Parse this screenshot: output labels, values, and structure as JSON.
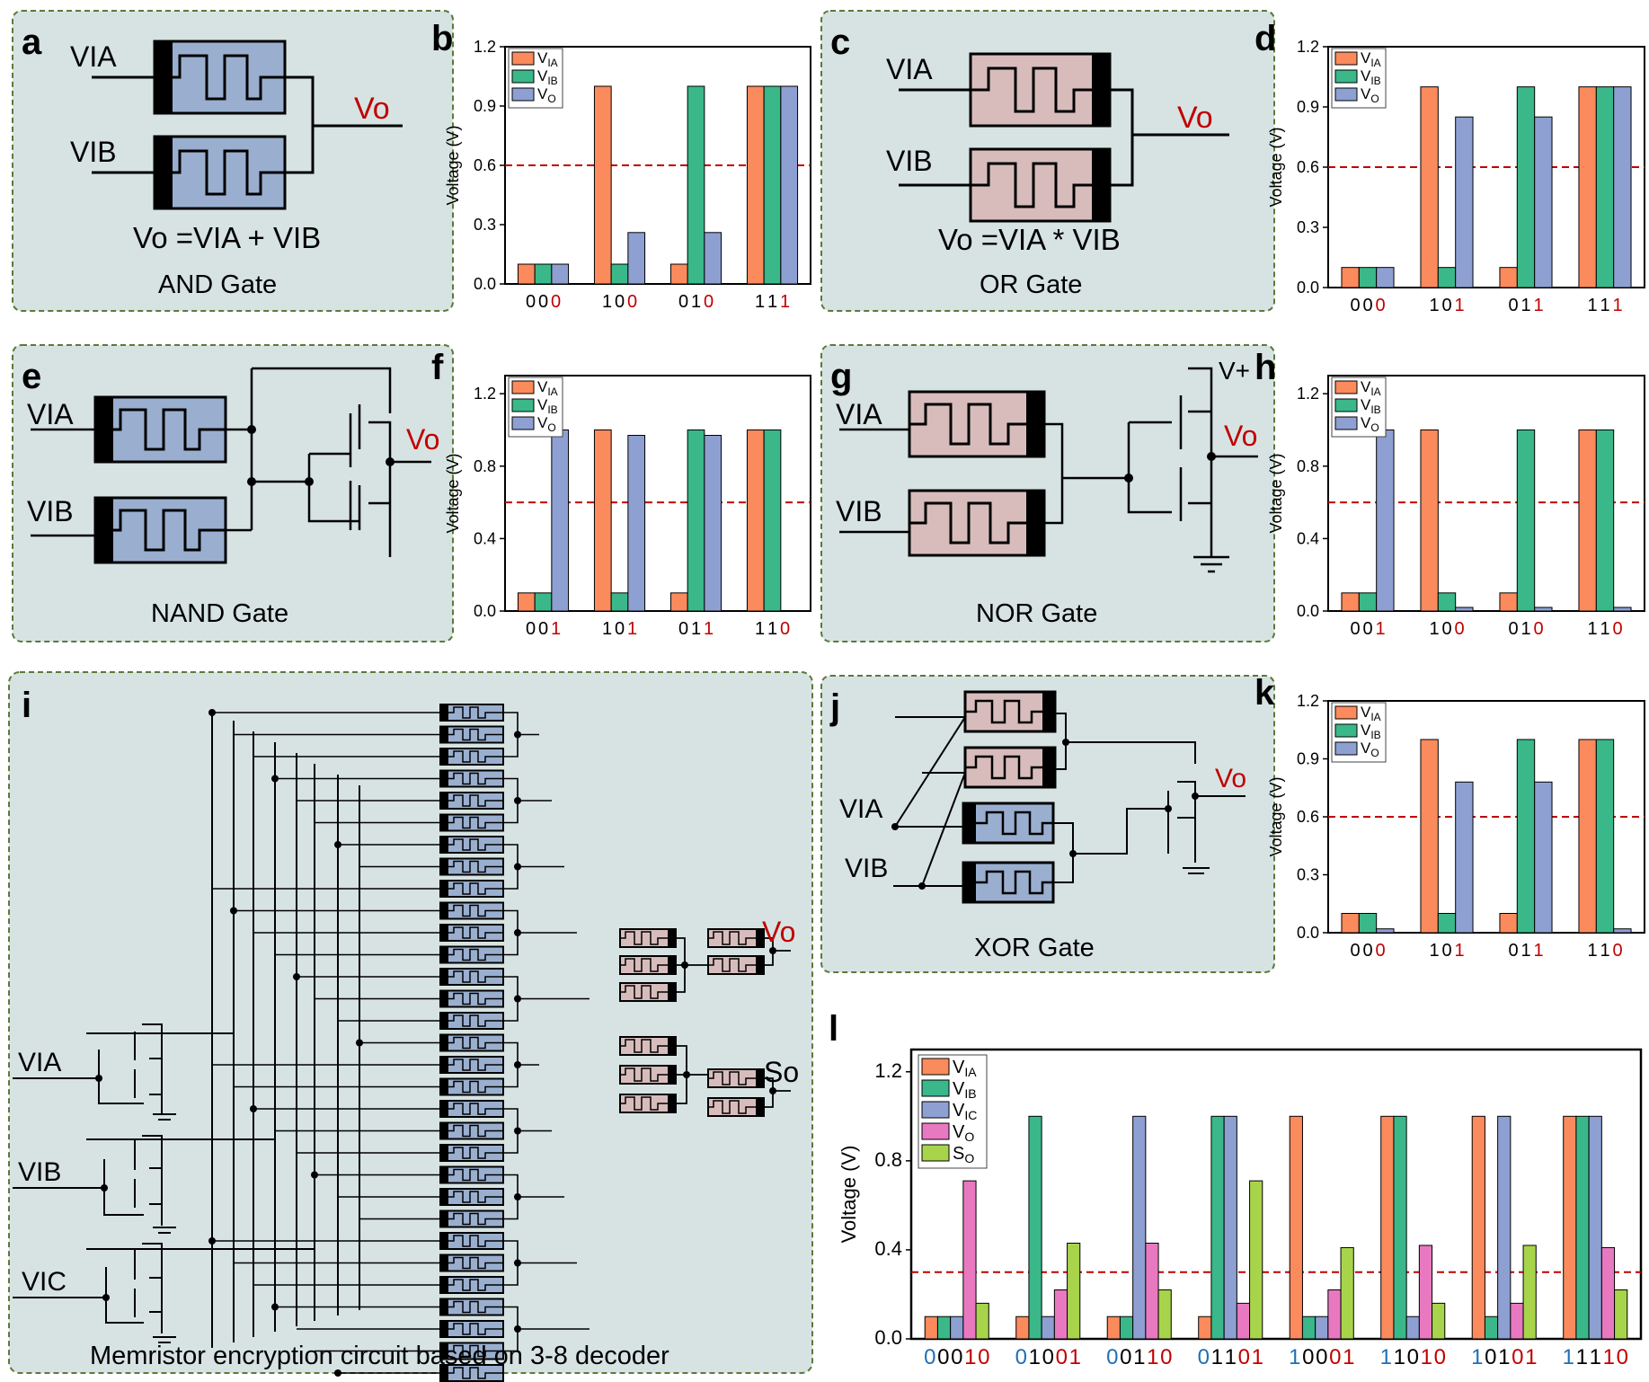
{
  "colors": {
    "panel_bg": "#d7e3e3",
    "panel_border": "#5a7a3a",
    "device_blue": "#9aafcf",
    "device_pink": "#d8bcbc",
    "bar_via": "#fb8a5c",
    "bar_vib": "#3ab889",
    "bar_vic": "#8ea0d2",
    "bar_vo_small": "#8ea0d2",
    "bar_vo_l": "#e879c0",
    "bar_so": "#a8d44c",
    "threshold": "#c00000",
    "label_red": "#c00000",
    "label_blue": "#1f6fb5"
  },
  "panels": {
    "a": {
      "letter": "a",
      "in_a": "VIA",
      "in_b": "VIB",
      "out": "Vo",
      "equation": "Vo =VIA + VIB",
      "name": "AND Gate"
    },
    "c": {
      "letter": "c",
      "in_a": "VIA",
      "in_b": "VIB",
      "out": "Vo",
      "equation": "Vo =VIA * VIB",
      "name": "OR Gate"
    },
    "e": {
      "letter": "e",
      "in_a": "VIA",
      "in_b": "VIB",
      "out": "Vo",
      "name": "NAND Gate"
    },
    "g": {
      "letter": "g",
      "in_a": "VIA",
      "in_b": "VIB",
      "out": "Vo",
      "supply": "V+",
      "name": "NOR Gate"
    },
    "i": {
      "letter": "i",
      "in_a": "VIA",
      "in_b": "VIB",
      "in_c": "VIC",
      "out_v": "Vo",
      "out_s": "So",
      "name": "Memristor encryption circuit based on 3-8 decoder"
    },
    "j": {
      "letter": "j",
      "in_a": "VIA",
      "in_b": "VIB",
      "out": "Vo",
      "name": "XOR Gate"
    }
  },
  "chart_data": [
    {
      "letter": "b",
      "type": "bar",
      "ylabel": "Voltage (V)",
      "ylim": [
        0,
        1.2
      ],
      "yticks": [
        "0.0",
        "0.3",
        "0.6",
        "0.9",
        "1.2"
      ],
      "threshold": 0.6,
      "legend": [
        "VIA",
        "VIB",
        "VO"
      ],
      "categories": [
        [
          "0",
          "0",
          "0"
        ],
        [
          "1",
          "0",
          "0"
        ],
        [
          "0",
          "1",
          "0"
        ],
        [
          "1",
          "1",
          "1"
        ]
      ],
      "series": [
        {
          "name": "VIA",
          "values": [
            0.1,
            1.0,
            0.1,
            1.0
          ]
        },
        {
          "name": "VIB",
          "values": [
            0.1,
            0.1,
            1.0,
            1.0
          ]
        },
        {
          "name": "VO",
          "values": [
            0.1,
            0.26,
            0.26,
            1.0
          ]
        }
      ]
    },
    {
      "letter": "d",
      "type": "bar",
      "ylabel": "Voltage (V)",
      "ylim": [
        0,
        1.2
      ],
      "yticks": [
        "0.0",
        "0.3",
        "0.6",
        "0.9",
        "1.2"
      ],
      "threshold": 0.6,
      "legend": [
        "VIA",
        "VIB",
        "VO"
      ],
      "categories": [
        [
          "0",
          "0",
          "0"
        ],
        [
          "1",
          "0",
          "1"
        ],
        [
          "0",
          "1",
          "1"
        ],
        [
          "1",
          "1",
          "1"
        ]
      ],
      "series": [
        {
          "name": "VIA",
          "values": [
            0.1,
            1.0,
            0.1,
            1.0
          ]
        },
        {
          "name": "VIB",
          "values": [
            0.1,
            0.1,
            1.0,
            1.0
          ]
        },
        {
          "name": "VO",
          "values": [
            0.1,
            0.85,
            0.85,
            1.0
          ]
        }
      ]
    },
    {
      "letter": "f",
      "type": "bar",
      "ylabel": "Voltage (V)",
      "ylim": [
        0,
        1.3
      ],
      "yticks": [
        "0.0",
        "0.4",
        "0.8",
        "1.2"
      ],
      "threshold": 0.6,
      "legend": [
        "VIA",
        "VIB",
        "VO"
      ],
      "categories": [
        [
          "0",
          "0",
          "1"
        ],
        [
          "1",
          "0",
          "1"
        ],
        [
          "0",
          "1",
          "1"
        ],
        [
          "1",
          "1",
          "0"
        ]
      ],
      "series": [
        {
          "name": "VIA",
          "values": [
            0.1,
            1.0,
            0.1,
            1.0
          ]
        },
        {
          "name": "VIB",
          "values": [
            0.1,
            0.1,
            1.0,
            1.0
          ]
        },
        {
          "name": "VO",
          "values": [
            1.0,
            0.97,
            0.97,
            0.0
          ]
        }
      ]
    },
    {
      "letter": "h",
      "type": "bar",
      "ylabel": "Voltage (V)",
      "ylim": [
        0,
        1.3
      ],
      "yticks": [
        "0.0",
        "0.4",
        "0.8",
        "1.2"
      ],
      "threshold": 0.6,
      "legend": [
        "VIA",
        "VIB",
        "VO"
      ],
      "categories": [
        [
          "0",
          "0",
          "1"
        ],
        [
          "1",
          "0",
          "0"
        ],
        [
          "0",
          "1",
          "0"
        ],
        [
          "1",
          "1",
          "0"
        ]
      ],
      "series": [
        {
          "name": "VIA",
          "values": [
            0.1,
            1.0,
            0.1,
            1.0
          ]
        },
        {
          "name": "VIB",
          "values": [
            0.1,
            0.1,
            1.0,
            1.0
          ]
        },
        {
          "name": "VO",
          "values": [
            1.0,
            0.02,
            0.02,
            0.02
          ]
        }
      ]
    },
    {
      "letter": "k",
      "type": "bar",
      "ylabel": "Voltage (V)",
      "ylim": [
        0,
        1.2
      ],
      "yticks": [
        "0.0",
        "0.3",
        "0.6",
        "0.9",
        "1.2"
      ],
      "threshold": 0.6,
      "legend": [
        "VIA",
        "VIB",
        "VO"
      ],
      "categories": [
        [
          "0",
          "0",
          "0"
        ],
        [
          "1",
          "0",
          "1"
        ],
        [
          "0",
          "1",
          "1"
        ],
        [
          "1",
          "1",
          "0"
        ]
      ],
      "series": [
        {
          "name": "VIA",
          "values": [
            0.1,
            1.0,
            0.1,
            1.0
          ]
        },
        {
          "name": "VIB",
          "values": [
            0.1,
            0.1,
            1.0,
            1.0
          ]
        },
        {
          "name": "VO",
          "values": [
            0.02,
            0.78,
            0.78,
            0.02
          ]
        }
      ]
    },
    {
      "letter": "l",
      "type": "bar",
      "ylabel": "Voltage (V)",
      "ylim": [
        0,
        1.3
      ],
      "yticks": [
        "0.0",
        "0.4",
        "0.8",
        "1.2"
      ],
      "threshold": 0.3,
      "legend": [
        "VIA",
        "VIB",
        "VIC",
        "VO",
        "SO"
      ],
      "categories": [
        [
          "0",
          "0",
          "0",
          "1",
          "0"
        ],
        [
          "0",
          "1",
          "0",
          "0",
          "1"
        ],
        [
          "0",
          "0",
          "1",
          "1",
          "0"
        ],
        [
          "0",
          "1",
          "1",
          "0",
          "1"
        ],
        [
          "1",
          "0",
          "0",
          "0",
          "1"
        ],
        [
          "1",
          "1",
          "0",
          "1",
          "0"
        ],
        [
          "1",
          "0",
          "1",
          "0",
          "1"
        ],
        [
          "1",
          "1",
          "1",
          "1",
          "0"
        ]
      ],
      "series": [
        {
          "name": "VIA",
          "values": [
            0.1,
            0.1,
            0.1,
            0.1,
            1.0,
            1.0,
            1.0,
            1.0
          ]
        },
        {
          "name": "VIB",
          "values": [
            0.1,
            1.0,
            0.1,
            1.0,
            0.1,
            1.0,
            0.1,
            1.0
          ]
        },
        {
          "name": "VIC",
          "values": [
            0.1,
            0.1,
            1.0,
            1.0,
            0.1,
            0.1,
            1.0,
            1.0
          ]
        },
        {
          "name": "VO",
          "values": [
            0.71,
            0.22,
            0.43,
            0.16,
            0.22,
            0.42,
            0.16,
            0.41
          ]
        },
        {
          "name": "SO",
          "values": [
            0.16,
            0.43,
            0.22,
            0.71,
            0.41,
            0.16,
            0.42,
            0.22
          ]
        }
      ]
    }
  ]
}
